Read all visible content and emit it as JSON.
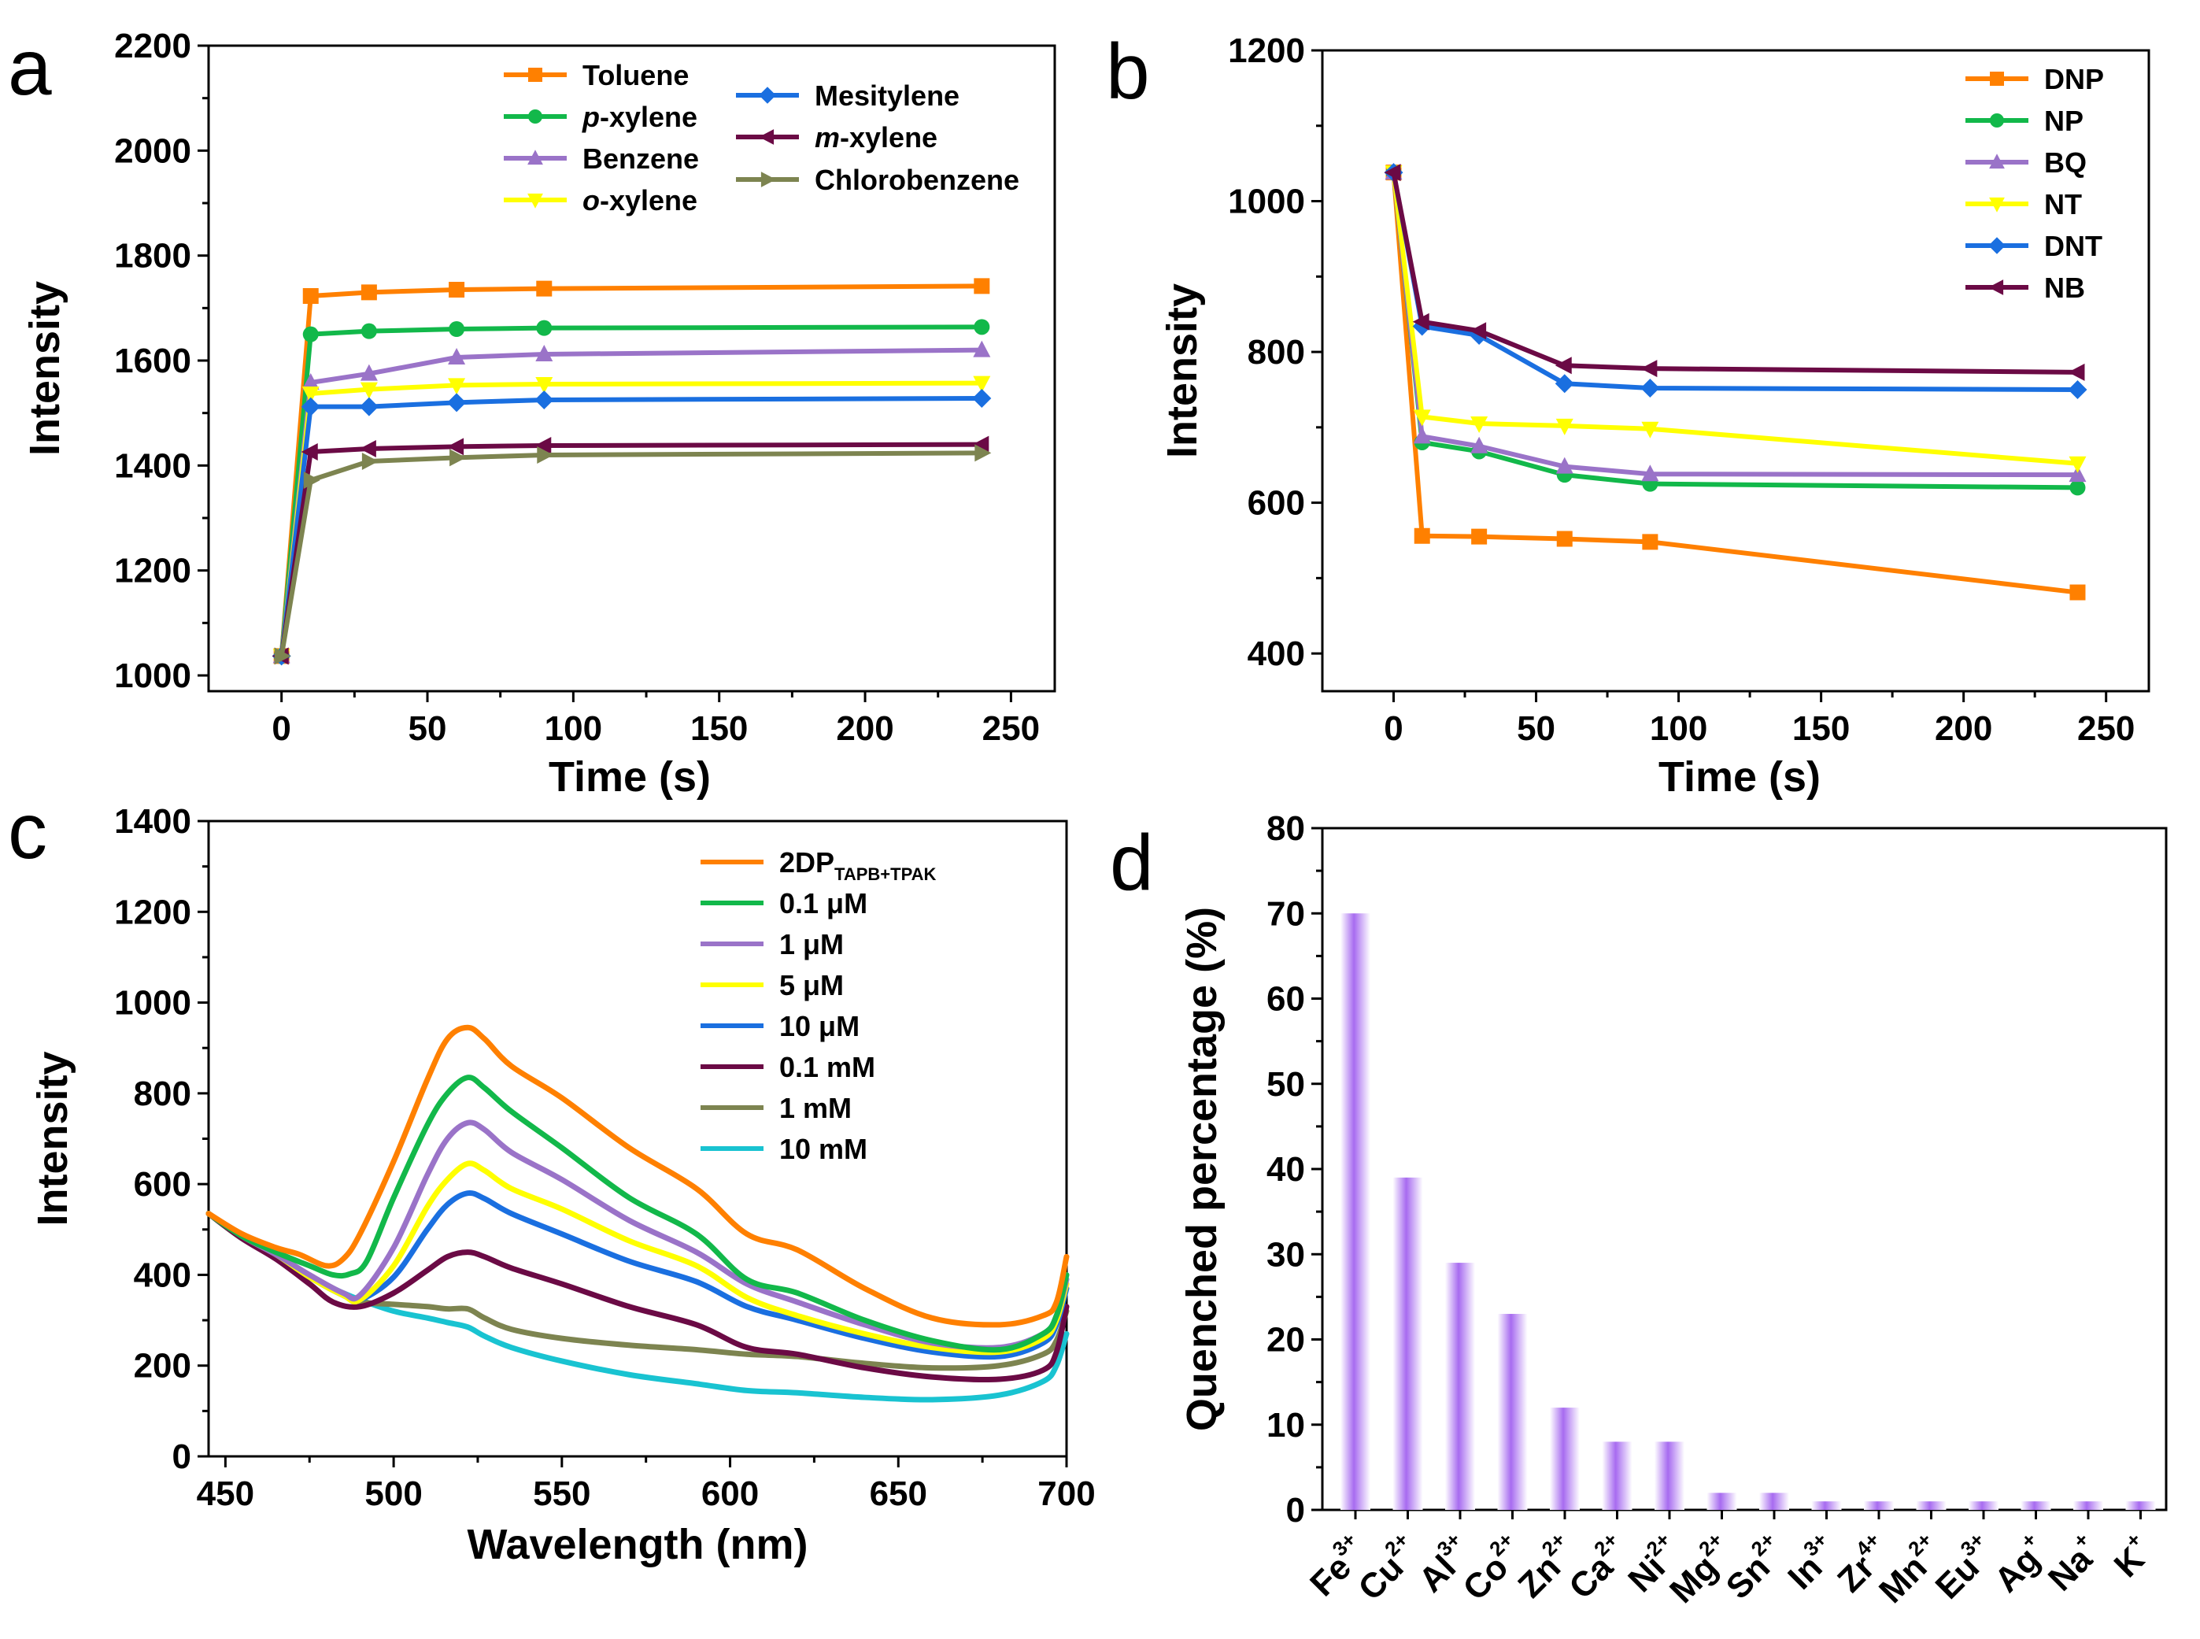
{
  "colors": {
    "orange": "#FF8000",
    "green": "#12B84A",
    "purple": "#9A73C8",
    "yellow": "#FFFF00",
    "blue": "#1A6FE0",
    "maroon": "#6B0A45",
    "olive": "#7D8450",
    "cyan": "#19C3D1",
    "bar": "#A76BF0"
  },
  "chart_data": [
    {
      "id": "a",
      "panel_label": "a",
      "type": "line",
      "xlabel": "Time (s)",
      "ylabel": "Intensity",
      "xlim": [
        -25,
        265
      ],
      "ylim": [
        970,
        2200
      ],
      "xticks": [
        0,
        50,
        100,
        150,
        200,
        250
      ],
      "yticks": [
        1000,
        1200,
        1400,
        1600,
        1800,
        2000,
        2200
      ],
      "x": [
        0,
        10,
        30,
        60,
        90,
        240
      ],
      "series": [
        {
          "name": "Toluene",
          "italic_prefix": "",
          "rest": "Toluene",
          "color": "#FF8000",
          "marker": "square",
          "values": [
            1037,
            1723,
            1730,
            1735,
            1737,
            1742
          ]
        },
        {
          "name": "p-xylene",
          "italic_prefix": "p",
          "rest": "-xylene",
          "color": "#12B84A",
          "marker": "circle",
          "values": [
            1037,
            1650,
            1656,
            1660,
            1662,
            1664
          ]
        },
        {
          "name": "Benzene",
          "italic_prefix": "",
          "rest": "Benzene",
          "color": "#9A73C8",
          "marker": "triangle-up",
          "values": [
            1037,
            1558,
            1575,
            1606,
            1612,
            1620
          ]
        },
        {
          "name": "o-xylene",
          "italic_prefix": "o",
          "rest": "-xylene",
          "color": "#FFFF00",
          "marker": "triangle-down",
          "values": [
            1037,
            1537,
            1545,
            1553,
            1555,
            1557
          ]
        },
        {
          "name": "Mesitylene",
          "italic_prefix": "",
          "rest": "Mesitylene",
          "color": "#1A6FE0",
          "marker": "diamond",
          "values": [
            1037,
            1512,
            1512,
            1520,
            1525,
            1528
          ]
        },
        {
          "name": "m-xylene",
          "italic_prefix": "m",
          "rest": "-xylene",
          "color": "#6B0A45",
          "marker": "triangle-left",
          "values": [
            1037,
            1426,
            1432,
            1436,
            1438,
            1440
          ]
        },
        {
          "name": "Chlorobenzene",
          "italic_prefix": "",
          "rest": "Chlorobenzene",
          "color": "#7D8450",
          "marker": "triangle-right",
          "values": [
            1037,
            1372,
            1408,
            1415,
            1420,
            1424
          ]
        }
      ]
    },
    {
      "id": "b",
      "panel_label": "b",
      "type": "line",
      "xlabel": "Time (s)",
      "ylabel": "Intensity",
      "xlim": [
        -25,
        265
      ],
      "ylim": [
        350,
        1200
      ],
      "xticks": [
        0,
        50,
        100,
        150,
        200,
        250
      ],
      "yticks": [
        400,
        600,
        800,
        1000,
        1200
      ],
      "x": [
        0,
        10,
        30,
        60,
        90,
        240
      ],
      "series": [
        {
          "name": "DNP",
          "color": "#FF8000",
          "marker": "square",
          "values": [
            1038,
            556,
            555,
            552,
            548,
            481
          ]
        },
        {
          "name": "NP",
          "color": "#12B84A",
          "marker": "circle",
          "values": [
            1038,
            680,
            668,
            637,
            625,
            620
          ]
        },
        {
          "name": "BQ",
          "color": "#9A73C8",
          "marker": "triangle-up",
          "values": [
            1038,
            688,
            675,
            648,
            638,
            637
          ]
        },
        {
          "name": "NT",
          "color": "#FFFF00",
          "marker": "triangle-down",
          "values": [
            1038,
            714,
            705,
            702,
            698,
            652
          ]
        },
        {
          "name": "DNT",
          "color": "#1A6FE0",
          "marker": "diamond",
          "values": [
            1038,
            834,
            822,
            758,
            752,
            750
          ]
        },
        {
          "name": "NB",
          "color": "#6B0A45",
          "marker": "triangle-left",
          "values": [
            1038,
            840,
            828,
            782,
            778,
            773
          ]
        }
      ]
    },
    {
      "id": "c",
      "panel_label": "c",
      "type": "line",
      "xlabel": "Wavelength (nm)",
      "ylabel": "Intensity",
      "xlim": [
        445,
        700
      ],
      "ylim": [
        0,
        1400
      ],
      "xticks": [
        450,
        500,
        550,
        600,
        650,
        700
      ],
      "yticks": [
        0,
        200,
        400,
        600,
        800,
        1000,
        1200,
        1400
      ],
      "series": [
        {
          "name": "2DP",
          "subscript": "TAPB+TPAK",
          "color": "#FF8000",
          "x": [
            445,
            455,
            465,
            472,
            480,
            485,
            490,
            500,
            510,
            516,
            522,
            527,
            535,
            550,
            570,
            590,
            605,
            620,
            640,
            660,
            680,
            693,
            697,
            700
          ],
          "values": [
            535,
            490,
            460,
            445,
            420,
            435,
            490,
            650,
            830,
            920,
            945,
            920,
            860,
            790,
            680,
            590,
            490,
            455,
            370,
            305,
            290,
            310,
            340,
            440
          ]
        },
        {
          "name": "0.1 μM",
          "color": "#12B84A",
          "x": [
            445,
            455,
            465,
            475,
            482,
            487,
            492,
            500,
            510,
            516,
            522,
            527,
            535,
            550,
            570,
            590,
            605,
            620,
            640,
            660,
            680,
            693,
            697,
            700
          ],
          "values": [
            535,
            485,
            450,
            420,
            400,
            402,
            430,
            570,
            730,
            800,
            835,
            812,
            760,
            680,
            570,
            490,
            390,
            360,
            300,
            255,
            235,
            270,
            310,
            400
          ]
        },
        {
          "name": "1 μM",
          "color": "#9A73C8",
          "x": [
            445,
            455,
            465,
            475,
            485,
            490,
            500,
            510,
            516,
            522,
            527,
            535,
            550,
            570,
            590,
            605,
            620,
            640,
            660,
            680,
            693,
            697,
            700
          ],
          "values": [
            535,
            485,
            445,
            400,
            360,
            355,
            460,
            620,
            700,
            735,
            720,
            670,
            610,
            520,
            450,
            380,
            340,
            290,
            250,
            240,
            270,
            310,
            390
          ]
        },
        {
          "name": "5 μM",
          "color": "#FFFF00",
          "x": [
            445,
            455,
            465,
            475,
            485,
            490,
            500,
            510,
            516,
            522,
            527,
            535,
            550,
            570,
            590,
            605,
            620,
            640,
            660,
            680,
            693,
            697,
            700
          ],
          "values": [
            535,
            485,
            445,
            395,
            355,
            345,
            420,
            550,
            610,
            645,
            630,
            590,
            545,
            475,
            420,
            350,
            310,
            270,
            240,
            230,
            260,
            300,
            380
          ]
        },
        {
          "name": "10 μM",
          "color": "#1A6FE0",
          "x": [
            445,
            455,
            465,
            475,
            485,
            490,
            500,
            510,
            516,
            522,
            527,
            535,
            550,
            570,
            590,
            605,
            620,
            640,
            660,
            680,
            693,
            697,
            700
          ],
          "values": [
            535,
            485,
            445,
            395,
            355,
            345,
            395,
            500,
            555,
            580,
            568,
            535,
            490,
            430,
            385,
            330,
            300,
            260,
            230,
            220,
            250,
            290,
            370
          ]
        },
        {
          "name": "0.1 mM",
          "color": "#6B0A45",
          "x": [
            445,
            455,
            465,
            475,
            482,
            490,
            500,
            510,
            516,
            522,
            527,
            535,
            550,
            570,
            590,
            605,
            620,
            640,
            660,
            680,
            693,
            697,
            700
          ],
          "values": [
            535,
            480,
            435,
            380,
            340,
            330,
            360,
            410,
            440,
            450,
            440,
            415,
            380,
            330,
            290,
            240,
            225,
            195,
            175,
            170,
            190,
            230,
            330
          ]
        },
        {
          "name": "1 mM",
          "color": "#7D8450",
          "x": [
            445,
            455,
            465,
            475,
            485,
            490,
            500,
            510,
            516,
            522,
            527,
            535,
            550,
            570,
            590,
            605,
            620,
            640,
            660,
            680,
            693,
            697,
            700
          ],
          "values": [
            535,
            480,
            440,
            395,
            355,
            340,
            335,
            330,
            325,
            325,
            305,
            280,
            260,
            245,
            235,
            225,
            220,
            205,
            195,
            200,
            225,
            255,
            320
          ]
        },
        {
          "name": "10 mM",
          "color": "#19C3D1",
          "x": [
            445,
            455,
            465,
            475,
            485,
            490,
            500,
            510,
            516,
            522,
            527,
            535,
            550,
            570,
            590,
            605,
            620,
            640,
            660,
            680,
            693,
            697,
            700
          ],
          "values": [
            535,
            480,
            440,
            395,
            360,
            345,
            320,
            305,
            295,
            285,
            265,
            240,
            210,
            180,
            160,
            145,
            140,
            130,
            125,
            135,
            165,
            200,
            270
          ]
        }
      ]
    },
    {
      "id": "d",
      "panel_label": "d",
      "type": "bar",
      "xlabel": "",
      "ylabel": "Quenched percentage (%)",
      "ylim": [
        0,
        80
      ],
      "yticks": [
        0,
        10,
        20,
        30,
        40,
        50,
        60,
        70,
        80
      ],
      "categories": [
        {
          "base": "Fe",
          "charge": "3+"
        },
        {
          "base": "Cu",
          "charge": "2+"
        },
        {
          "base": "Al",
          "charge": "3+"
        },
        {
          "base": "Co",
          "charge": "2+"
        },
        {
          "base": "Zn",
          "charge": "2+"
        },
        {
          "base": "Ca",
          "charge": "2+"
        },
        {
          "base": "Ni",
          "charge": "2+"
        },
        {
          "base": "Mg",
          "charge": "2+"
        },
        {
          "base": "Sn",
          "charge": "2+"
        },
        {
          "base": "In",
          "charge": "3+"
        },
        {
          "base": "Zr",
          "charge": "4+"
        },
        {
          "base": "Mn",
          "charge": "2+"
        },
        {
          "base": "Eu",
          "charge": "3+"
        },
        {
          "base": "Ag",
          "charge": "+"
        },
        {
          "base": "Na",
          "charge": "+"
        },
        {
          "base": "K",
          "charge": "+"
        }
      ],
      "values": [
        70,
        39,
        29,
        23,
        12,
        8,
        8,
        2,
        2,
        1,
        1,
        1,
        1,
        1,
        1,
        1
      ],
      "color": "#A76BF0"
    }
  ]
}
